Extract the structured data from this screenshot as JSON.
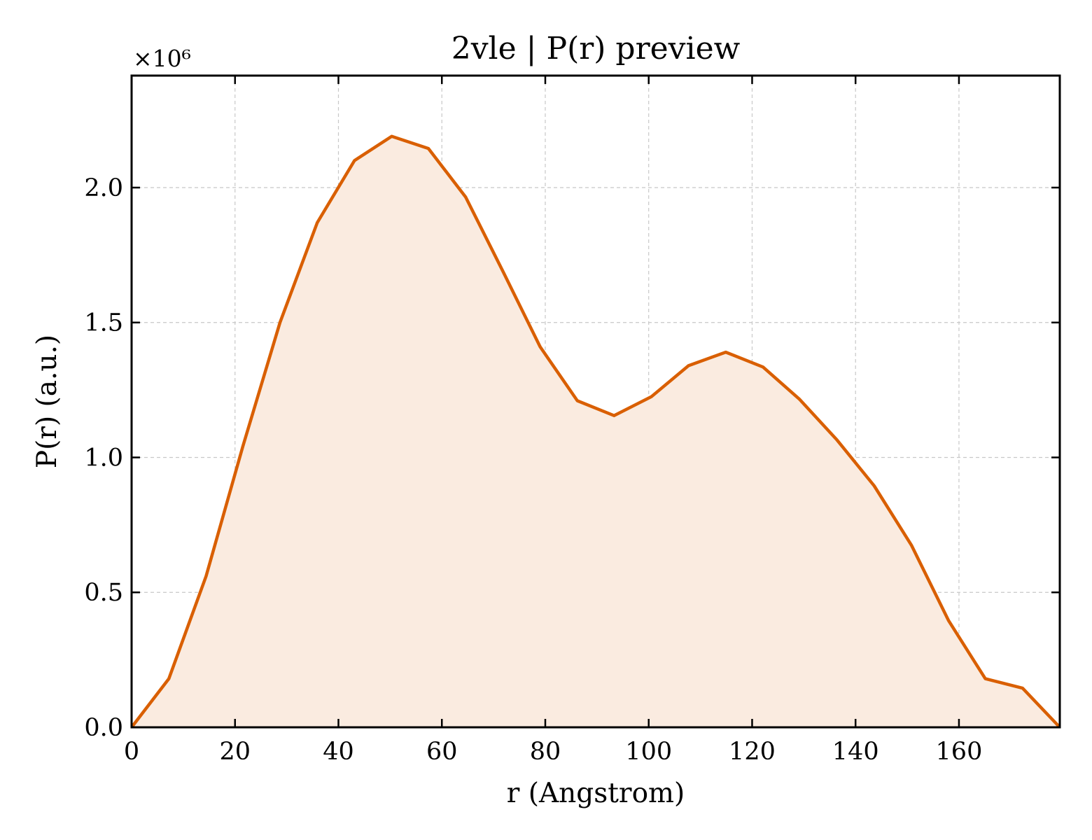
{
  "chart_data": {
    "type": "area",
    "title": "2vle | P(r) preview",
    "xlabel": "r (Angstrom)",
    "ylabel": "P(r) (a.u.)",
    "y_offset_text": "×10⁶",
    "y_scale": 1000000,
    "xlim": [
      0,
      179.5
    ],
    "ylim": [
      0,
      2.415
    ],
    "x_ticks": [
      0,
      20,
      40,
      60,
      80,
      100,
      120,
      140,
      160
    ],
    "x_tick_labels": [
      "0",
      "20",
      "40",
      "60",
      "80",
      "100",
      "120",
      "140",
      "160"
    ],
    "y_ticks": [
      0.0,
      0.5,
      1.0,
      1.5,
      2.0
    ],
    "y_tick_labels": [
      "0.0",
      "0.5",
      "1.0",
      "1.5",
      "2.0"
    ],
    "grid": true,
    "line_color": "#d95f02",
    "fill_color": "#faebe0",
    "series": [
      {
        "x": [
          0,
          7.2,
          14.4,
          21.5,
          28.7,
          35.9,
          43.1,
          50.3,
          57.4,
          64.6,
          71.8,
          79.0,
          86.2,
          93.3,
          100.5,
          107.7,
          114.9,
          122.1,
          129.2,
          136.4,
          143.6,
          150.8,
          158.0,
          165.1,
          172.3,
          179.5
        ],
        "y": [
          0.0,
          0.18,
          0.56,
          1.04,
          1.5,
          1.87,
          2.1,
          2.19,
          2.145,
          1.965,
          1.69,
          1.41,
          1.21,
          1.155,
          1.225,
          1.34,
          1.39,
          1.335,
          1.215,
          1.065,
          0.895,
          0.675,
          0.395,
          0.18,
          0.145,
          0.0
        ]
      }
    ]
  }
}
